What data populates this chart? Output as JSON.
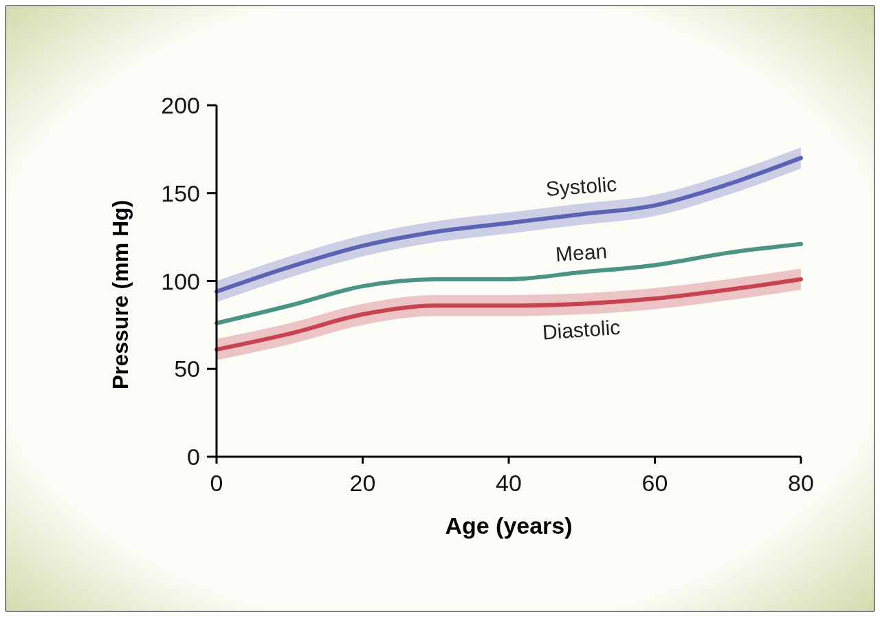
{
  "chart_data": {
    "type": "line",
    "xlabel": "Age (years)",
    "ylabel": "Pressure (mm Hg)",
    "xlim": [
      0,
      80
    ],
    "xticks": [
      0,
      20,
      40,
      60,
      80
    ],
    "ylim": [
      0,
      200
    ],
    "yticks": [
      0,
      50,
      100,
      150,
      200
    ],
    "grid": false,
    "marker": "none",
    "line_style": "solid",
    "x": [
      0,
      10,
      20,
      30,
      40,
      50,
      60,
      70,
      80
    ],
    "series": [
      {
        "name": "Systolic",
        "color": "#5b63b5",
        "values": [
          94,
          108,
          120,
          128,
          133,
          138,
          143,
          155,
          170
        ],
        "lower": [
          88,
          102,
          114,
          122,
          127,
          132,
          137,
          149,
          164
        ],
        "upper": [
          100,
          114,
          126,
          134,
          139,
          144,
          149,
          161,
          176
        ]
      },
      {
        "name": "Mean",
        "color": "#4a9484",
        "values": [
          76,
          86,
          97,
          101,
          101,
          105,
          109,
          116,
          121
        ]
      },
      {
        "name": "Diastolic",
        "color": "#c8434f",
        "values": [
          61,
          70,
          81,
          86,
          86,
          87,
          90,
          95,
          101
        ],
        "lower": [
          55,
          64,
          75,
          80,
          80,
          81,
          84,
          89,
          95
        ],
        "upper": [
          67,
          76,
          87,
          92,
          92,
          93,
          96,
          101,
          107
        ]
      }
    ]
  }
}
